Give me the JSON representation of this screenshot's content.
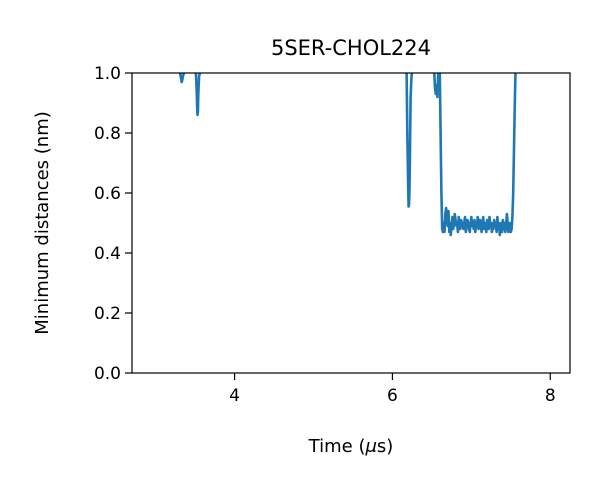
{
  "chart_data": {
    "type": "line",
    "title": "5SER-CHOL224",
    "xlabel_prefix": "Time (",
    "xlabel_symbol": "μ",
    "xlabel_suffix": "s)",
    "ylabel": "Minimum distances (nm)",
    "xlim": [
      2.7,
      8.25
    ],
    "ylim": [
      0.0,
      1.0
    ],
    "xticks": [
      4,
      6,
      8
    ],
    "xtick_labels": [
      "4",
      "6",
      "8"
    ],
    "yticks": [
      0.0,
      0.2,
      0.4,
      0.6,
      0.8,
      1.0
    ],
    "ytick_labels": [
      "0.0",
      "0.2",
      "0.4",
      "0.6",
      "0.8",
      "1.0"
    ],
    "grid": false,
    "line_color": "#1f77b4",
    "series": [
      {
        "x": [
          3.31,
          3.32,
          3.33,
          3.34,
          3.35,
          3.36
        ],
        "y": [
          1.0,
          0.985,
          0.97,
          0.98,
          0.995,
          1.0
        ]
      },
      {
        "x": [
          3.51,
          3.52,
          3.525,
          3.53,
          3.535,
          3.54,
          3.55,
          3.56
        ],
        "y": [
          1.0,
          0.94,
          0.89,
          0.86,
          0.87,
          0.93,
          0.99,
          1.0
        ]
      },
      {
        "x": [
          6.18,
          6.19,
          6.2,
          6.205,
          6.21,
          6.215,
          6.22,
          6.225,
          6.23,
          6.24,
          6.245
        ],
        "y": [
          1.0,
          0.78,
          0.62,
          0.555,
          0.56,
          0.6,
          0.68,
          0.8,
          0.92,
          0.98,
          1.0
        ]
      },
      {
        "x": [
          6.53,
          6.54,
          6.55,
          6.56,
          6.57,
          6.58
        ],
        "y": [
          1.0,
          0.95,
          0.93,
          0.96,
          0.92,
          1.0
        ]
      },
      {
        "x": [
          6.6,
          6.61,
          6.62,
          6.63,
          6.64,
          6.65,
          6.66,
          6.67,
          6.68,
          6.69,
          6.7,
          6.71,
          6.72,
          6.73,
          6.74,
          6.75,
          6.76,
          6.77,
          6.78,
          6.79,
          6.8,
          6.81,
          6.82,
          6.83,
          6.84,
          6.85,
          6.86,
          6.87,
          6.88,
          6.89,
          6.9,
          6.91,
          6.92,
          6.93,
          6.94,
          6.95,
          6.96,
          6.97,
          6.98,
          6.99,
          7.0,
          7.01,
          7.02,
          7.03,
          7.04,
          7.05,
          7.06,
          7.07,
          7.08,
          7.09,
          7.1,
          7.11,
          7.12,
          7.13,
          7.14,
          7.15,
          7.16,
          7.17,
          7.18,
          7.19,
          7.2,
          7.21,
          7.22,
          7.23,
          7.24,
          7.25,
          7.26,
          7.27,
          7.28,
          7.29,
          7.3,
          7.31,
          7.32,
          7.33,
          7.34,
          7.35,
          7.36,
          7.37,
          7.38,
          7.39,
          7.4,
          7.41,
          7.42,
          7.43,
          7.44,
          7.45,
          7.46,
          7.47,
          7.48,
          7.49,
          7.5,
          7.51,
          7.52,
          7.53,
          7.54,
          7.55,
          7.56
        ],
        "y": [
          1.0,
          0.8,
          0.6,
          0.48,
          0.47,
          0.5,
          0.47,
          0.53,
          0.55,
          0.52,
          0.49,
          0.54,
          0.47,
          0.5,
          0.46,
          0.49,
          0.52,
          0.48,
          0.5,
          0.53,
          0.51,
          0.49,
          0.5,
          0.47,
          0.52,
          0.5,
          0.48,
          0.51,
          0.5,
          0.49,
          0.48,
          0.5,
          0.52,
          0.47,
          0.49,
          0.51,
          0.5,
          0.48,
          0.47,
          0.5,
          0.52,
          0.49,
          0.5,
          0.48,
          0.51,
          0.47,
          0.5,
          0.49,
          0.52,
          0.48,
          0.5,
          0.51,
          0.49,
          0.47,
          0.5,
          0.52,
          0.48,
          0.5,
          0.49,
          0.47,
          0.51,
          0.5,
          0.48,
          0.52,
          0.49,
          0.5,
          0.47,
          0.5,
          0.48,
          0.51,
          0.49,
          0.5,
          0.47,
          0.52,
          0.48,
          0.5,
          0.46,
          0.49,
          0.5,
          0.47,
          0.51,
          0.48,
          0.5,
          0.47,
          0.49,
          0.53,
          0.5,
          0.47,
          0.48,
          0.5,
          0.47,
          0.48,
          0.52,
          0.6,
          0.75,
          0.9,
          1.0
        ]
      }
    ]
  }
}
